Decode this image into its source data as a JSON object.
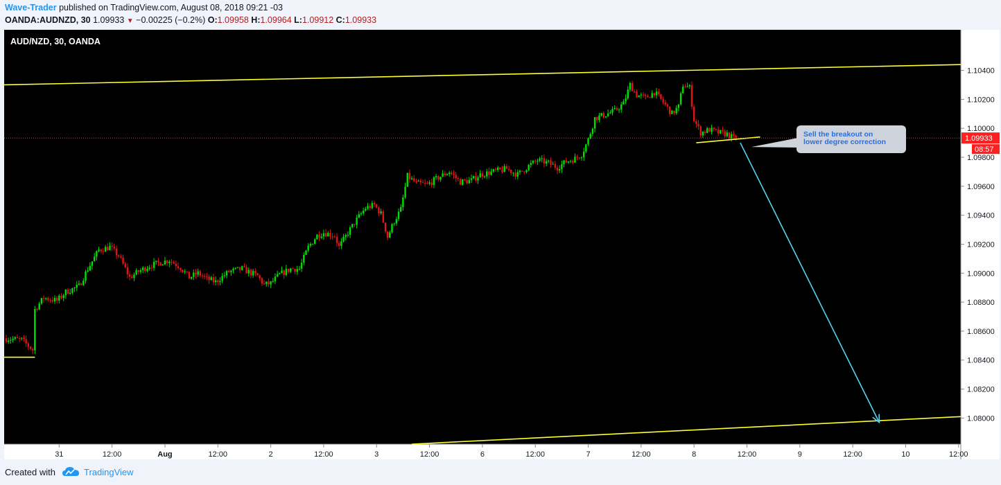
{
  "header": {
    "author": "Wave-Trader",
    "published_text": "published on TradingView.com, August 08, 2018 09:21 -03",
    "symbol_label": "OANDA:AUDNZD, 30",
    "last_price": "1.09933",
    "change": "−0.00225 (−0.2%)",
    "o_label": "O:",
    "o_value": "1.09958",
    "h_label": "H:",
    "h_value": "1.09964",
    "l_label": "L:",
    "l_value": "1.09912",
    "c_label": "C:",
    "c_value": "1.09933"
  },
  "footer": {
    "created_with": "Created with",
    "brand": "TradingView"
  },
  "colors": {
    "background": "#000000",
    "up_candle": "#00e000",
    "down_candle": "#e01515",
    "trendline": "#ffff33",
    "arrow": "#4dd8f0",
    "price_line": "#ff3030",
    "price_badge": "#ff1f1f",
    "callout_fill": "#cfd3dc",
    "callout_text": "#2a6fdb"
  },
  "chart_data": {
    "type": "candlestick",
    "title": "AUD/NZD, 30, OANDA",
    "xlabel": "",
    "ylabel": "",
    "ylim": [
      1.0782,
      1.1068
    ],
    "y_ticks": [
      "1.10400",
      "1.10200",
      "1.10000",
      "1.09800",
      "1.09600",
      "1.09400",
      "1.09200",
      "1.09000",
      "1.08800",
      "1.08600",
      "1.08400",
      "1.08200",
      "1.08000"
    ],
    "x_ticks": [
      "31",
      "12:00",
      "Aug",
      "12:00",
      "2",
      "12:00",
      "3",
      "12:00",
      "6",
      "12:00",
      "7",
      "12:00",
      "8",
      "12:00",
      "9",
      "12:00",
      "10",
      "12:00"
    ],
    "x_tick_bar_index": [
      24,
      48,
      72,
      96,
      120,
      144,
      168,
      192,
      216,
      240,
      264,
      288,
      312,
      336,
      360,
      384,
      408,
      432
    ],
    "last_price": "1.09933",
    "countdown": "08:57",
    "price_path_anchors": [
      [
        0,
        1.0855
      ],
      [
        8,
        1.0854
      ],
      [
        13,
        1.0847
      ],
      [
        14,
        1.0875
      ],
      [
        18,
        1.0883
      ],
      [
        24,
        1.0881
      ],
      [
        28,
        1.0887
      ],
      [
        34,
        1.0891
      ],
      [
        38,
        1.0903
      ],
      [
        43,
        1.0916
      ],
      [
        48,
        1.0918
      ],
      [
        52,
        1.0912
      ],
      [
        57,
        1.0897
      ],
      [
        62,
        1.0902
      ],
      [
        66,
        1.0905
      ],
      [
        70,
        1.0907
      ],
      [
        75,
        1.0909
      ],
      [
        80,
        1.0904
      ],
      [
        84,
        1.0897
      ],
      [
        88,
        1.09
      ],
      [
        92,
        1.0896
      ],
      [
        96,
        1.0894
      ],
      [
        102,
        1.0901
      ],
      [
        108,
        1.0903
      ],
      [
        115,
        1.0898
      ],
      [
        118,
        1.0892
      ],
      [
        121,
        1.0893
      ],
      [
        125,
        1.0899
      ],
      [
        130,
        1.0903
      ],
      [
        134,
        1.0903
      ],
      [
        138,
        1.0918
      ],
      [
        142,
        1.0926
      ],
      [
        145,
        1.0928
      ],
      [
        150,
        1.0926
      ],
      [
        152,
        1.0918
      ],
      [
        156,
        1.0928
      ],
      [
        160,
        1.0937
      ],
      [
        164,
        1.0945
      ],
      [
        168,
        1.0947
      ],
      [
        171,
        1.0941
      ],
      [
        174,
        1.0925
      ],
      [
        177,
        1.0936
      ],
      [
        180,
        1.0944
      ],
      [
        183,
        1.0967
      ],
      [
        187,
        1.0962
      ],
      [
        192,
        1.0961
      ],
      [
        197,
        1.0966
      ],
      [
        202,
        1.097
      ],
      [
        207,
        1.0963
      ],
      [
        212,
        1.0964
      ],
      [
        216,
        1.0968
      ],
      [
        222,
        1.097
      ],
      [
        228,
        1.0972
      ],
      [
        233,
        1.0968
      ],
      [
        238,
        1.0974
      ],
      [
        242,
        1.0978
      ],
      [
        247,
        1.0976
      ],
      [
        251,
        1.0973
      ],
      [
        255,
        1.0977
      ],
      [
        259,
        1.0979
      ],
      [
        262,
        1.0982
      ],
      [
        265,
        1.0992
      ],
      [
        268,
        1.1007
      ],
      [
        272,
        1.1009
      ],
      [
        277,
        1.1012
      ],
      [
        281,
        1.1017
      ],
      [
        284,
        1.103
      ],
      [
        287,
        1.1023
      ],
      [
        291,
        1.1021
      ],
      [
        295,
        1.1025
      ],
      [
        299,
        1.1018
      ],
      [
        303,
        1.101
      ],
      [
        306,
        1.1015
      ],
      [
        308,
        1.103
      ],
      [
        311,
        1.1028
      ],
      [
        313,
        1.1006
      ],
      [
        316,
        1.0997
      ],
      [
        320,
        1.0999
      ],
      [
        324,
        1.0997
      ],
      [
        328,
        1.0996
      ],
      [
        331,
        1.0993
      ]
    ],
    "annotations": {
      "callout_text": "Sell the breakout on lower degree correction",
      "trendlines": [
        {
          "name": "upper-channel",
          "points": [
            [
              -1,
              1.103
            ],
            [
              446,
              1.1044
            ]
          ]
        },
        {
          "name": "lower-channel",
          "points": [
            [
              184,
              1.0782
            ],
            [
              446,
              1.0801
            ]
          ]
        },
        {
          "name": "left-support",
          "points": [
            [
              -1,
              1.0842
            ],
            [
              13,
              1.0842
            ]
          ]
        },
        {
          "name": "correction-line",
          "points": [
            [
              313,
              1.099
            ],
            [
              342,
              1.0994
            ]
          ]
        }
      ],
      "arrow": {
        "from": [
          333,
          1.099
        ],
        "to": [
          396,
          1.0797
        ]
      }
    }
  }
}
